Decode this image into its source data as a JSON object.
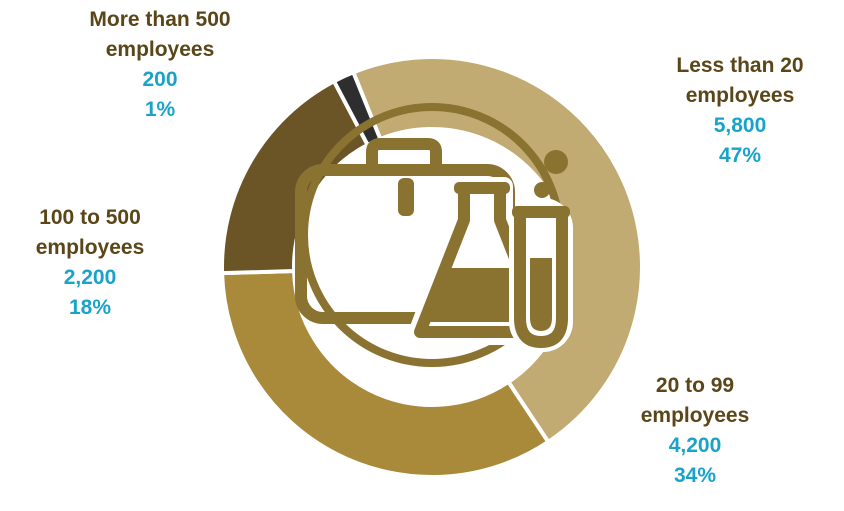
{
  "chart_data": {
    "type": "pie",
    "style": "donut",
    "center_icon": "briefcase-flask-test-tube-icon",
    "categories": [
      "Less than 20 employees",
      "20 to 99 employees",
      "100 to 500 employees",
      "More than 500 employees"
    ],
    "label_lines": [
      [
        "Less than 20",
        "employees"
      ],
      [
        "20 to 99",
        "employees"
      ],
      [
        "100 to 500",
        "employees"
      ],
      [
        "More than 500",
        "employees"
      ]
    ],
    "values": [
      5800,
      4200,
      2200,
      200
    ],
    "value_labels": [
      "5,800",
      "4,200",
      "2,200",
      "200"
    ],
    "percent_labels": [
      "47%",
      "34%",
      "18%",
      "1%"
    ],
    "colors": [
      "#c1ab72",
      "#a9893a",
      "#6b5527",
      "#2e2e2e"
    ]
  }
}
